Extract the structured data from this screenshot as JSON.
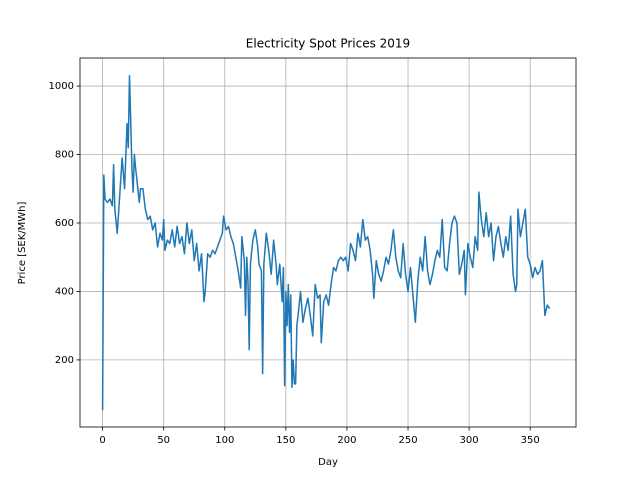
{
  "chart_data": {
    "type": "line",
    "title": "Electricity Spot Prices 2019",
    "x_label": "Day",
    "y_label": "Price [SEK/MWh]",
    "xlim": [
      -18.5,
      387.5
    ],
    "ylim": [
      4,
      1082
    ],
    "xticks": [
      0,
      50,
      100,
      150,
      200,
      250,
      300,
      350
    ],
    "yticks": [
      200,
      400,
      600,
      800,
      1000
    ],
    "grid": true,
    "series": [
      {
        "name": "Price",
        "color": "#1f77b4",
        "x": [
          0,
          1,
          2,
          4,
          6,
          8,
          9,
          10,
          12,
          14,
          16,
          18,
          20,
          21,
          22,
          23,
          24,
          25,
          26,
          27,
          28,
          30,
          31,
          33,
          35,
          37,
          39,
          41,
          43,
          45,
          47,
          49,
          50,
          51,
          53,
          55,
          57,
          59,
          61,
          63,
          65,
          67,
          69,
          71,
          73,
          75,
          77,
          79,
          81,
          83,
          84,
          86,
          88,
          90,
          92,
          94,
          96,
          98,
          99,
          101,
          103,
          105,
          107,
          109,
          111,
          113,
          114,
          116,
          117,
          118,
          119,
          120,
          121,
          123,
          125,
          127,
          128,
          130,
          131,
          132,
          134,
          136,
          138,
          140,
          142,
          143,
          145,
          147,
          148,
          149,
          150,
          151,
          152,
          153,
          154,
          155,
          156,
          157,
          158,
          159,
          160,
          162,
          164,
          166,
          168,
          170,
          172,
          174,
          176,
          178,
          179,
          181,
          183,
          185,
          187,
          189,
          191,
          193,
          195,
          197,
          199,
          201,
          203,
          205,
          207,
          209,
          211,
          213,
          215,
          217,
          219,
          221,
          222,
          224,
          226,
          228,
          230,
          232,
          234,
          236,
          238,
          240,
          242,
          244,
          246,
          248,
          250,
          252,
          254,
          256,
          258,
          260,
          262,
          264,
          266,
          268,
          270,
          272,
          274,
          276,
          278,
          280,
          282,
          284,
          286,
          288,
          290,
          292,
          294,
          296,
          297,
          299,
          301,
          303,
          305,
          307,
          308,
          310,
          312,
          314,
          316,
          318,
          320,
          322,
          324,
          326,
          328,
          330,
          332,
          334,
          336,
          338,
          339,
          340,
          342,
          344,
          346,
          348,
          350,
          352,
          354,
          356,
          358,
          360,
          362,
          364,
          366
        ],
        "values": [
          53,
          740,
          670,
          660,
          670,
          650,
          770,
          640,
          570,
          680,
          790,
          700,
          890,
          820,
          1030,
          900,
          760,
          690,
          800,
          760,
          730,
          660,
          700,
          700,
          640,
          610,
          620,
          580,
          600,
          530,
          570,
          550,
          610,
          520,
          550,
          540,
          580,
          530,
          590,
          540,
          560,
          510,
          600,
          540,
          580,
          490,
          540,
          460,
          510,
          370,
          400,
          510,
          500,
          520,
          510,
          530,
          550,
          570,
          620,
          580,
          590,
          560,
          540,
          500,
          460,
          410,
          560,
          490,
          330,
          500,
          430,
          230,
          480,
          550,
          580,
          530,
          480,
          460,
          160,
          480,
          570,
          520,
          450,
          550,
          480,
          420,
          480,
          370,
          470,
          125,
          400,
          300,
          420,
          280,
          390,
          120,
          200,
          130,
          130,
          300,
          330,
          400,
          310,
          350,
          380,
          330,
          270,
          420,
          380,
          390,
          250,
          370,
          390,
          360,
          420,
          470,
          460,
          490,
          500,
          490,
          500,
          460,
          540,
          520,
          490,
          570,
          530,
          610,
          550,
          560,
          520,
          450,
          380,
          490,
          450,
          430,
          460,
          500,
          480,
          520,
          580,
          500,
          460,
          440,
          540,
          450,
          400,
          470,
          390,
          310,
          430,
          500,
          460,
          560,
          460,
          420,
          450,
          490,
          520,
          500,
          610,
          470,
          460,
          540,
          600,
          620,
          600,
          450,
          480,
          520,
          390,
          540,
          500,
          470,
          560,
          520,
          690,
          610,
          560,
          630,
          560,
          600,
          490,
          560,
          590,
          540,
          500,
          560,
          520,
          620,
          450,
          400,
          420,
          640,
          560,
          600,
          640,
          500,
          480,
          440,
          470,
          450,
          460,
          490,
          330,
          360,
          350
        ]
      }
    ]
  }
}
